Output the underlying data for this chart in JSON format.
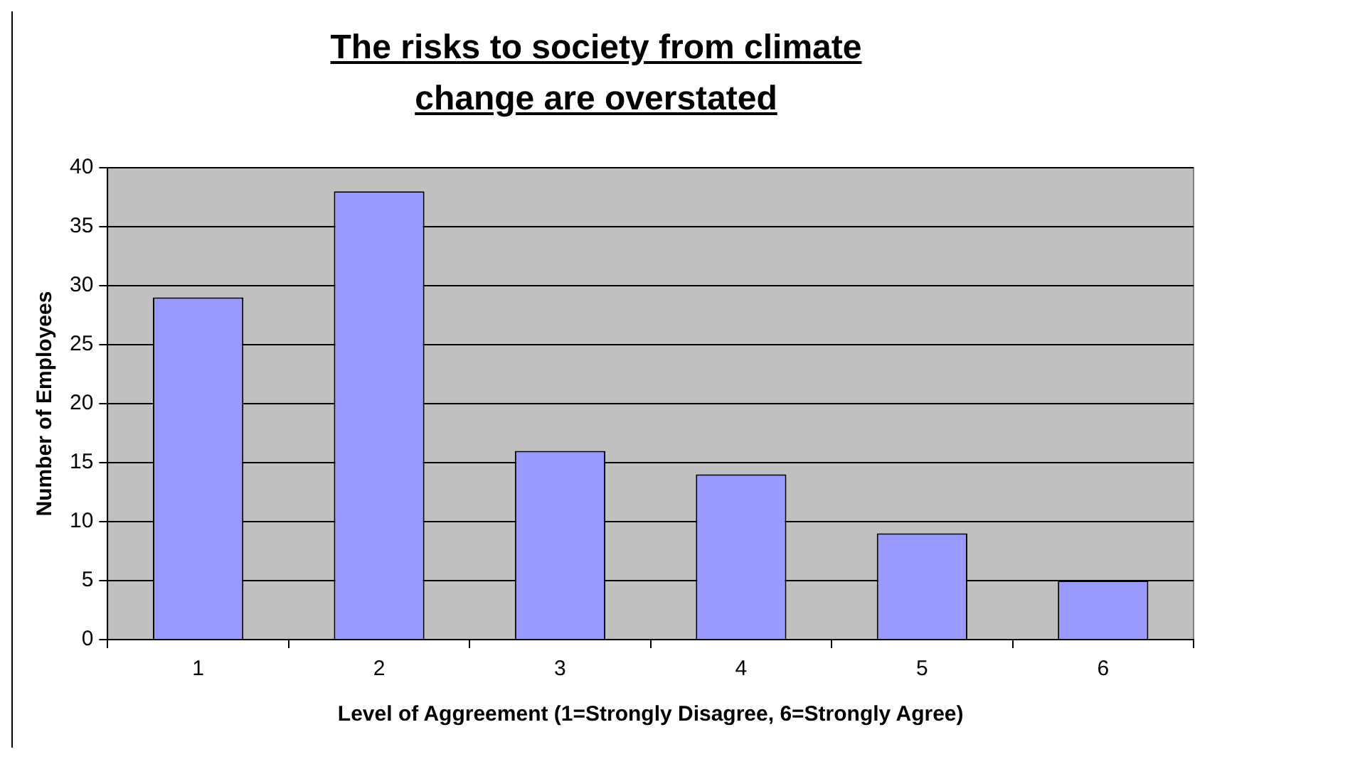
{
  "chart_data": {
    "type": "bar",
    "title": "The risks to society from climate change are overstated",
    "xlabel": "Level of Aggreement (1=Strongly Disagree, 6=Strongly Agree)",
    "ylabel": "Number of Employees",
    "categories": [
      "1",
      "2",
      "3",
      "4",
      "5",
      "6"
    ],
    "values": [
      29,
      38,
      16,
      14,
      9,
      5
    ],
    "color": "#9999ff",
    "ylim": [
      0,
      40
    ],
    "yticks": [
      0,
      5,
      10,
      15,
      20,
      25,
      30,
      35,
      40
    ],
    "grid": "y",
    "legend": false
  }
}
